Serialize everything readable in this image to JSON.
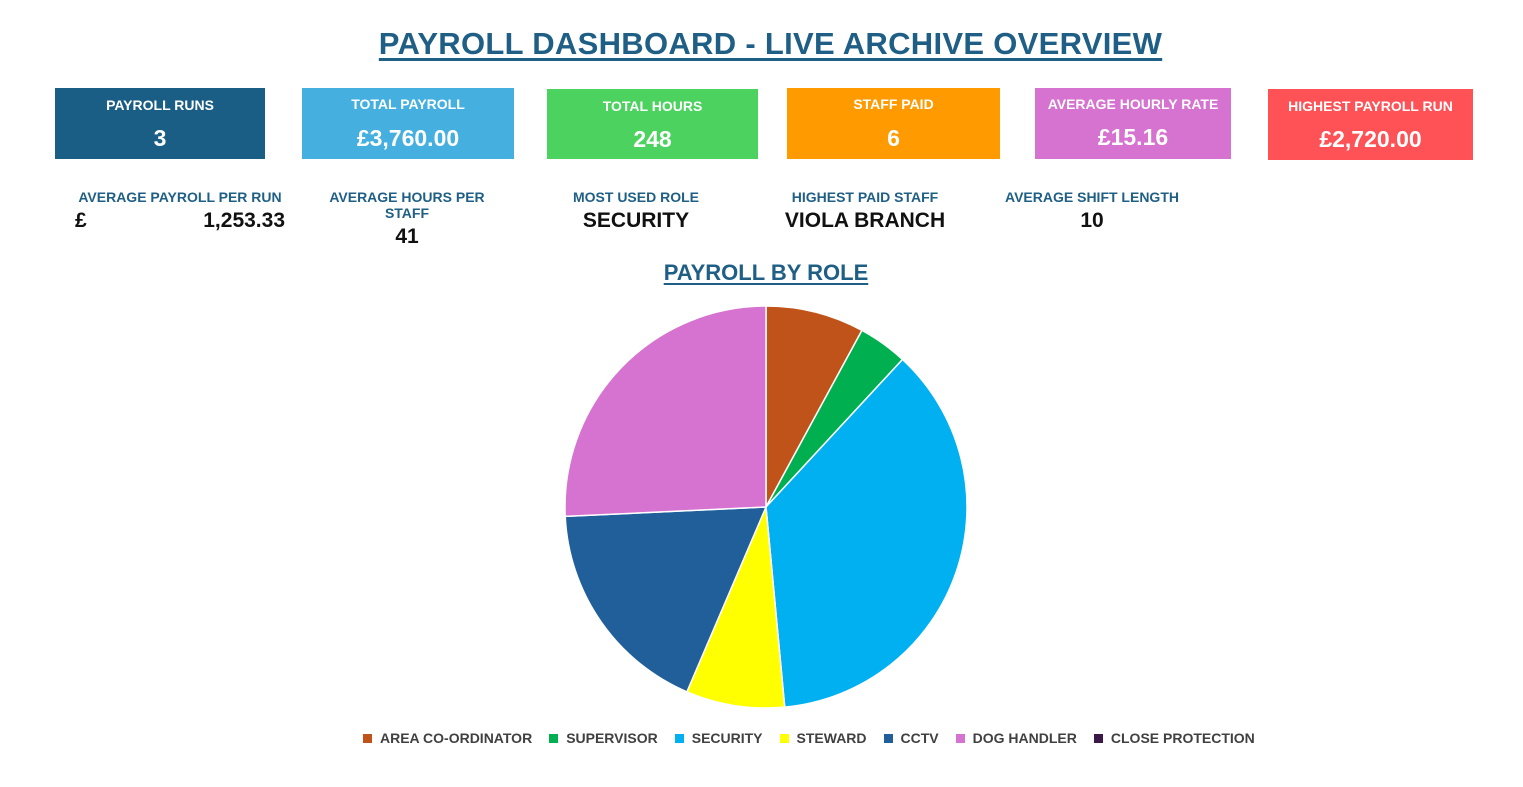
{
  "title": "PAYROLL DASHBOARD - LIVE ARCHIVE OVERVIEW",
  "kpis": [
    {
      "label": "PAYROLL RUNS",
      "value": "3",
      "color": "#1b5e85"
    },
    {
      "label": "TOTAL PAYROLL",
      "value": "£3,760.00",
      "color": "#45b0e0"
    },
    {
      "label": "TOTAL HOURS",
      "value": "248",
      "color": "#4cd25f"
    },
    {
      "label": "STAFF PAID",
      "value": "6",
      "color": "#ff9a00"
    },
    {
      "label": "AVERAGE HOURLY RATE",
      "value": "£15.16",
      "color": "#d672cf"
    },
    {
      "label": "HIGHEST PAYROLL RUN",
      "value": "£2,720.00",
      "color": "#ff5257"
    }
  ],
  "stats": {
    "avg_payroll": {
      "label": "AVERAGE PAYROLL PER RUN",
      "currency": "£",
      "value": "1,253.33"
    },
    "avg_hours": {
      "label": "AVERAGE HOURS PER STAFF",
      "value": "41"
    },
    "most_used_role": {
      "label": "MOST USED ROLE",
      "value": "SECURITY"
    },
    "highest_paid": {
      "label": "HIGHEST PAID STAFF",
      "value": "VIOLA BRANCH"
    },
    "avg_shift": {
      "label": "AVERAGE SHIFT LENGTH",
      "value": "10"
    }
  },
  "chart_data": {
    "type": "pie",
    "title": "PAYROLL BY ROLE",
    "legend_position": "bottom",
    "categories": [
      "AREA CO-ORDINATOR",
      "SUPERVISOR",
      "SECURITY",
      "STEWARD",
      "CCTV",
      "DOG HANDLER",
      "CLOSE PROTECTION"
    ],
    "values": [
      8,
      4,
      37,
      8,
      18,
      26,
      0
    ],
    "colors": [
      "#c0531a",
      "#00b050",
      "#00b0f0",
      "#ffff00",
      "#215f9b",
      "#d672cf",
      "#3a1848"
    ]
  }
}
